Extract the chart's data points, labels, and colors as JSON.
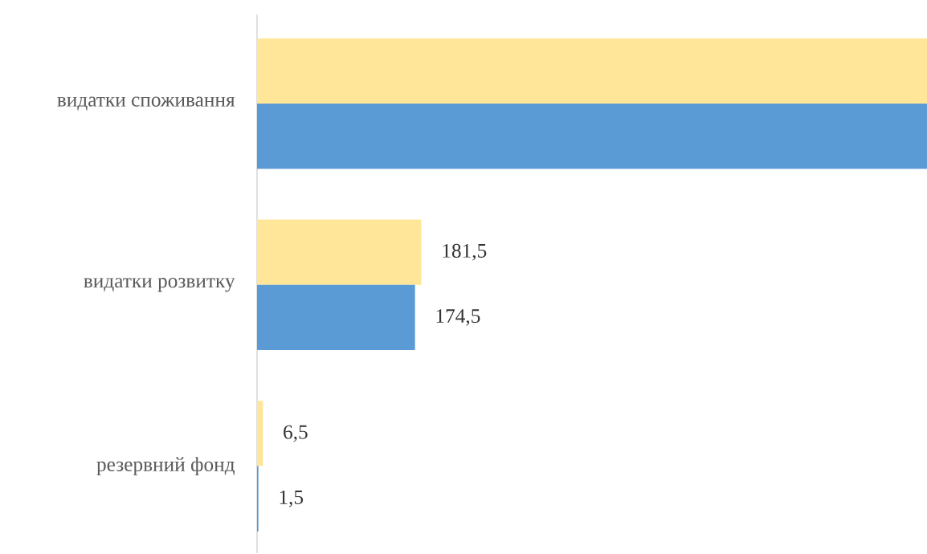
{
  "chart_data": {
    "type": "bar",
    "orientation": "horizontal",
    "categories": [
      "видатки споживання",
      "видатки розвитку",
      "резервний фонд"
    ],
    "series": [
      {
        "color": "#ffe699",
        "values": [
          740,
          181.5,
          6.5
        ],
        "value_labels": [
          null,
          "181,5",
          "6,5"
        ]
      },
      {
        "color": "#5b9bd5",
        "values": [
          740,
          174.5,
          1.5
        ],
        "value_labels": [
          null,
          "174,5",
          "1,5"
        ]
      }
    ],
    "xlim": [
      0,
      740
    ]
  }
}
